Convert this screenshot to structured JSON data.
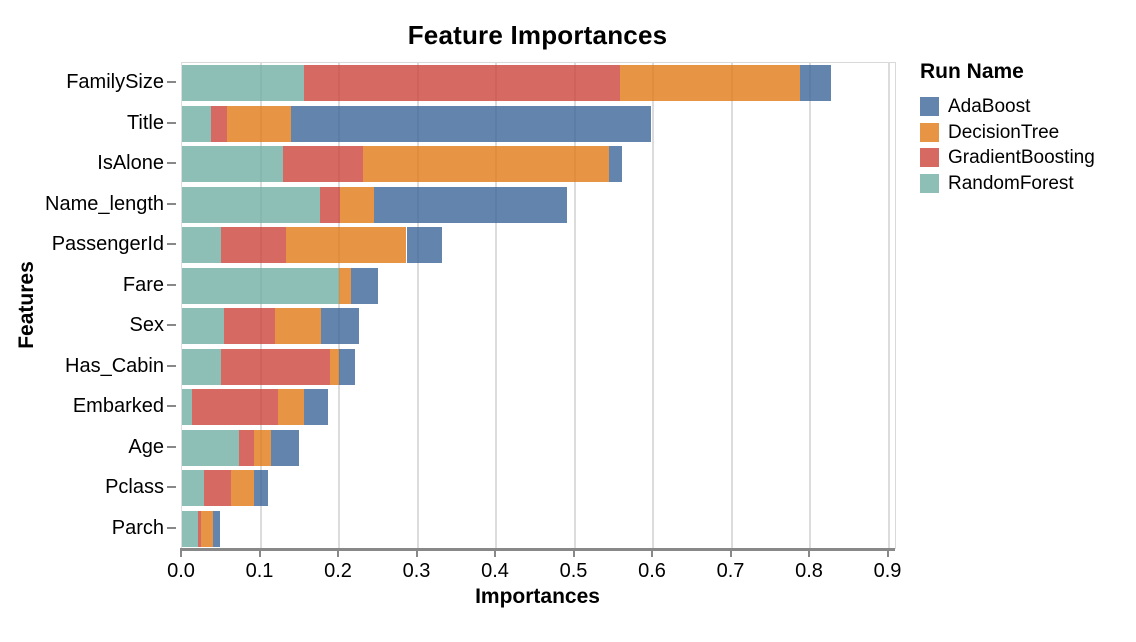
{
  "chart_data": {
    "type": "bar",
    "orientation": "horizontal",
    "stacked": true,
    "title": "Feature Importances",
    "xlabel": "Importances",
    "ylabel": "Features",
    "categories": [
      "FamilySize",
      "Title",
      "IsAlone",
      "Name_length",
      "PassengerId",
      "Fare",
      "Sex",
      "Has_Cabin",
      "Embarked",
      "Age",
      "Pclass",
      "Parch"
    ],
    "series": [
      {
        "name": "AdaBoost",
        "color": "#3c6598",
        "rendered_color": "#6384ad",
        "values": [
          0.04,
          0.458,
          0.016,
          0.245,
          0.045,
          0.035,
          0.049,
          0.02,
          0.03,
          0.035,
          0.017,
          0.01
        ]
      },
      {
        "name": "DecisionTree",
        "color": "#e27916",
        "rendered_color": "#e89445",
        "values": [
          0.229,
          0.082,
          0.313,
          0.044,
          0.154,
          0.015,
          0.059,
          0.011,
          0.034,
          0.022,
          0.029,
          0.015
        ]
      },
      {
        "name": "GradientBoosting",
        "color": "#cc453b",
        "rendered_color": "#d66a62",
        "values": [
          0.402,
          0.02,
          0.102,
          0.025,
          0.082,
          0.0,
          0.064,
          0.139,
          0.109,
          0.019,
          0.035,
          0.003
        ]
      },
      {
        "name": "RandomForest",
        "color": "#71afa4",
        "rendered_color": "#8dbfb6",
        "values": [
          0.156,
          0.037,
          0.129,
          0.176,
          0.05,
          0.2,
          0.054,
          0.05,
          0.013,
          0.073,
          0.028,
          0.021
        ]
      }
    ],
    "stack_order_left_to_right": [
      "RandomForest",
      "GradientBoosting",
      "DecisionTree",
      "AdaBoost"
    ],
    "totals": [
      0.827,
      0.597,
      0.56,
      0.49,
      0.331,
      0.25,
      0.226,
      0.22,
      0.186,
      0.149,
      0.109,
      0.049
    ],
    "x_ticks": [
      "0.0",
      "0.1",
      "0.2",
      "0.3",
      "0.4",
      "0.5",
      "0.6",
      "0.7",
      "0.8",
      "0.9"
    ],
    "xlim": [
      0.0,
      0.908
    ],
    "grid": true,
    "legend": {
      "title": "Run Name",
      "position": "right",
      "items": [
        "AdaBoost",
        "DecisionTree",
        "GradientBoosting",
        "RandomForest"
      ]
    }
  },
  "style_colors": {
    "axis_line": "#888888",
    "tick": "#888888",
    "gridline": "#dcdcdc",
    "plot_border": "#d9d9d9",
    "text": "#000000"
  }
}
